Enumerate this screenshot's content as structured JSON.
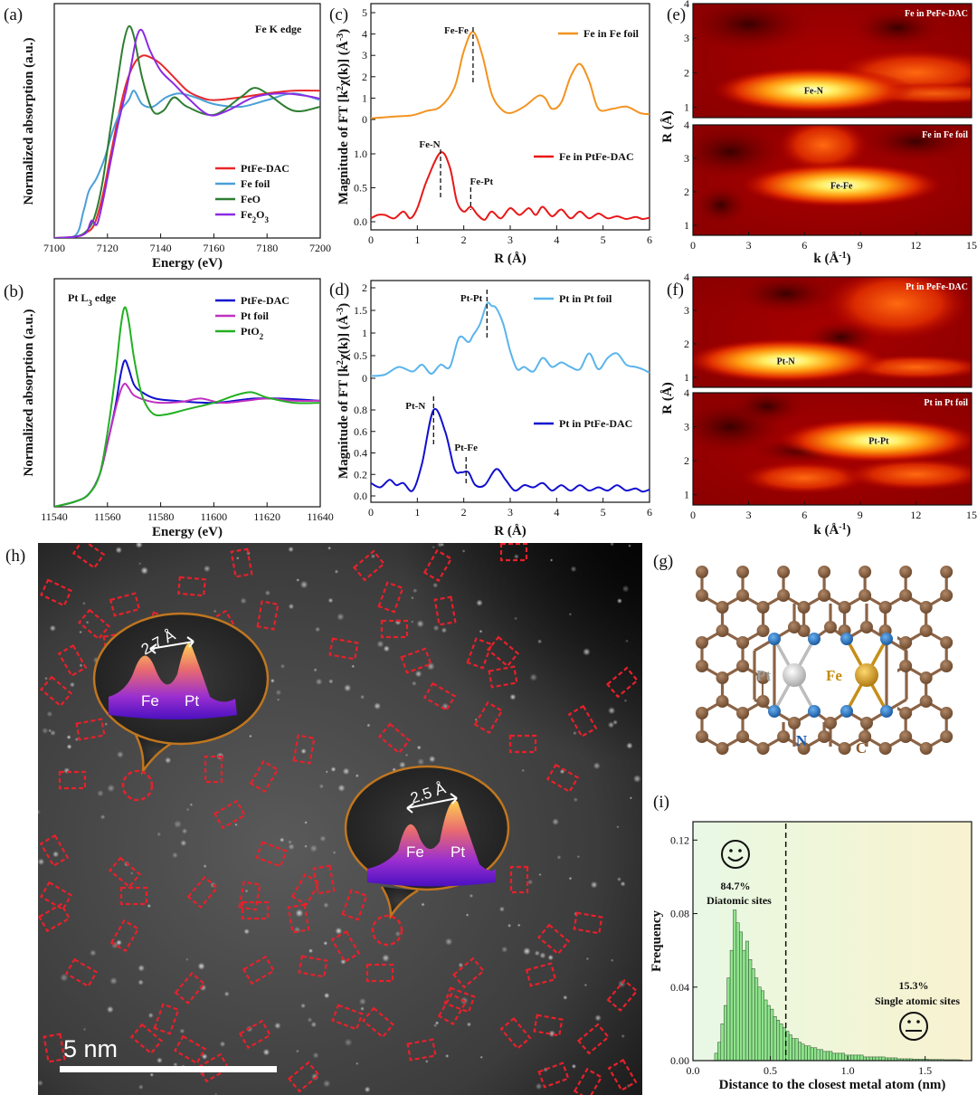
{
  "panels": {
    "a": "(a)",
    "b": "(b)",
    "c": "(c)",
    "d": "(d)",
    "e": "(e)",
    "f": "(f)",
    "g": "(g)",
    "h": "(h)",
    "i": "(i)"
  },
  "colors": {
    "pa_ptfe": "#e8282b",
    "pa_fefoil": "#4a9fd8",
    "pa_feo": "#2e7d32",
    "pa_fe2o3": "#8a2be2",
    "pb_ptfe": "#1010d0",
    "pb_ptfoil": "#c030c0",
    "pb_pto2": "#22b022",
    "pc_foil": "#f39320",
    "pc_dac": "#e81818",
    "pd_foil": "#5ab4ec",
    "pd_dac": "#1010d0",
    "hist_bar": "#8fe38c",
    "box": "#e8202a",
    "bubble": "#c0761f",
    "lattice_c": "#8b6346",
    "lattice_n": "#2a78c8",
    "lattice_pt": "#d8d8d8",
    "lattice_fe": "#d79a1d"
  },
  "chart_data": [
    {
      "id": "a",
      "type": "line",
      "title": "Fe K edge",
      "xlabel": "Energy (eV)",
      "ylabel": "Normalized absorption (a.u.)",
      "xlim": [
        7100,
        7200
      ],
      "xticks": [
        "7100",
        "7120",
        "7140",
        "7160",
        "7180",
        "7200"
      ],
      "series": [
        {
          "name": "PtFe-DAC",
          "color_key": "pa_ptfe",
          "x": [
            7100,
            7108,
            7112,
            7115,
            7118,
            7121,
            7124,
            7127,
            7130,
            7133,
            7136,
            7140,
            7145,
            7150,
            7155,
            7160,
            7170,
            7180,
            7190,
            7200
          ],
          "y": [
            0.0,
            0.01,
            0.04,
            0.1,
            0.3,
            0.6,
            0.9,
            1.15,
            1.3,
            1.36,
            1.35,
            1.3,
            1.2,
            1.1,
            1.05,
            1.03,
            1.05,
            1.08,
            1.1,
            1.1
          ]
        },
        {
          "name": "Fe foil",
          "color_key": "pa_fefoil",
          "x": [
            7100,
            7108,
            7111,
            7113,
            7116,
            7119,
            7122,
            7125,
            7128,
            7130,
            7133,
            7137,
            7142,
            7147,
            7153,
            7160,
            7170,
            7180,
            7190,
            7200
          ],
          "y": [
            0.0,
            0.02,
            0.2,
            0.35,
            0.45,
            0.6,
            0.8,
            0.95,
            1.03,
            1.1,
            1.0,
            0.98,
            1.05,
            1.08,
            1.05,
            1.0,
            0.98,
            1.03,
            1.08,
            1.03
          ]
        },
        {
          "name": "FeO",
          "color_key": "pa_feo",
          "x": [
            7100,
            7108,
            7112,
            7115,
            7118,
            7121,
            7124,
            7126,
            7128,
            7130,
            7133,
            7137,
            7141,
            7145,
            7150,
            7160,
            7170,
            7175,
            7180,
            7190,
            7200
          ],
          "y": [
            0.0,
            0.01,
            0.05,
            0.15,
            0.4,
            0.8,
            1.2,
            1.45,
            1.58,
            1.5,
            1.2,
            0.95,
            0.95,
            1.05,
            0.98,
            0.92,
            1.05,
            1.12,
            1.08,
            0.95,
            0.98
          ]
        },
        {
          "name": "Fe2O3",
          "color_key": "pa_fe2o3",
          "x": [
            7100,
            7108,
            7112,
            7114,
            7116,
            7118,
            7121,
            7124,
            7127,
            7129,
            7131,
            7133,
            7136,
            7140,
            7145,
            7150,
            7158,
            7165,
            7175,
            7185,
            7195,
            7200
          ],
          "y": [
            0.0,
            0.01,
            0.04,
            0.13,
            0.1,
            0.25,
            0.55,
            0.85,
            1.1,
            1.3,
            1.5,
            1.55,
            1.4,
            1.25,
            1.15,
            1.05,
            0.92,
            0.95,
            1.05,
            1.08,
            1.06,
            1.04
          ]
        }
      ]
    },
    {
      "id": "b",
      "type": "line",
      "title": "Pt L3 edge",
      "xlabel": "Energy (eV)",
      "ylabel": "Normalized absorption (a.u.)",
      "xlim": [
        11540,
        11640
      ],
      "xticks": [
        "11540",
        "11560",
        "11580",
        "11600",
        "11620",
        "11640"
      ],
      "series": [
        {
          "name": "PtFe-DAC",
          "color_key": "pb_ptfe",
          "x": [
            11540,
            11548,
            11553,
            11557,
            11560,
            11563,
            11565,
            11566.5,
            11568,
            11570,
            11573,
            11578,
            11585,
            11600,
            11615,
            11625,
            11640
          ],
          "y": [
            0.0,
            0.05,
            0.12,
            0.3,
            0.6,
            0.95,
            1.25,
            1.38,
            1.3,
            1.15,
            1.08,
            1.02,
            1.0,
            0.98,
            1.02,
            1.02,
            1.0
          ]
        },
        {
          "name": "Pt foil",
          "color_key": "pb_ptfoil",
          "x": [
            11540,
            11548,
            11553,
            11557,
            11560,
            11563,
            11565,
            11566.5,
            11568,
            11570,
            11575,
            11580,
            11588,
            11595,
            11603,
            11612,
            11620,
            11630,
            11640
          ],
          "y": [
            0.0,
            0.05,
            0.12,
            0.3,
            0.6,
            0.92,
            1.1,
            1.16,
            1.12,
            1.05,
            1.0,
            0.98,
            0.99,
            1.02,
            0.98,
            1.0,
            1.02,
            1.0,
            1.0
          ]
        },
        {
          "name": "PtO2",
          "color_key": "pb_pto2",
          "x": [
            11540,
            11548,
            11553,
            11557,
            11560,
            11563,
            11565,
            11566.5,
            11568,
            11570,
            11573,
            11577,
            11582,
            11590,
            11600,
            11608,
            11614,
            11620,
            11630,
            11640
          ],
          "y": [
            0.0,
            0.05,
            0.12,
            0.3,
            0.7,
            1.25,
            1.7,
            1.88,
            1.75,
            1.4,
            1.05,
            0.88,
            0.87,
            0.92,
            0.98,
            1.05,
            1.08,
            1.03,
            0.98,
            0.98
          ]
        }
      ]
    },
    {
      "id": "c",
      "type": "line",
      "xlabel": "R (Å)",
      "ylabel": "Magnitude of FT [k²χ(k)] (Å⁻³)",
      "xlim": [
        0,
        6
      ],
      "xticks": [
        "0",
        "1",
        "2",
        "3",
        "4",
        "5",
        "6"
      ],
      "yticks_top": [
        "0",
        "1",
        "2",
        "3",
        "4",
        "5"
      ],
      "yticks_bottom": [
        "0.0",
        "0.5",
        "1.0"
      ],
      "annotations": [
        {
          "text": "Fe-Fe",
          "x": 2.2
        },
        {
          "text": "Fe-N",
          "x": 1.5
        },
        {
          "text": "Fe-Pt",
          "x": 2.15
        }
      ],
      "series": [
        {
          "name": "Fe in Fe foil",
          "color_key": "pc_foil",
          "x": [
            0,
            0.3,
            0.6,
            0.9,
            1.2,
            1.5,
            1.8,
            2.0,
            2.2,
            2.4,
            2.6,
            2.8,
            3.0,
            3.3,
            3.6,
            3.75,
            3.9,
            4.1,
            4.3,
            4.5,
            4.7,
            4.9,
            5.2,
            5.5,
            5.8,
            6.0
          ],
          "y": [
            0.05,
            0.1,
            0.15,
            0.2,
            0.4,
            0.6,
            1.5,
            3.2,
            4.1,
            3.0,
            1.2,
            0.5,
            0.3,
            0.6,
            1.1,
            1.0,
            0.5,
            0.8,
            2.0,
            2.6,
            1.8,
            0.5,
            0.5,
            0.6,
            0.3,
            0.25
          ]
        },
        {
          "name": "Fe in PtFe-DAC",
          "color_key": "pc_dac",
          "x": [
            0,
            0.15,
            0.3,
            0.5,
            0.7,
            0.85,
            1.0,
            1.2,
            1.5,
            1.7,
            1.85,
            2.0,
            2.15,
            2.3,
            2.45,
            2.6,
            2.8,
            3.0,
            3.2,
            3.4,
            3.55,
            3.7,
            3.9,
            4.1,
            4.3,
            4.5,
            4.7,
            4.9,
            5.1,
            5.3,
            5.5,
            5.7,
            5.85,
            6.0
          ],
          "y": [
            0.05,
            0.1,
            0.1,
            0.05,
            0.15,
            0.05,
            0.2,
            0.6,
            1.02,
            0.8,
            0.3,
            0.15,
            0.22,
            0.1,
            0.03,
            0.15,
            0.05,
            0.2,
            0.1,
            0.2,
            0.1,
            0.22,
            0.08,
            0.18,
            0.05,
            0.15,
            0.05,
            0.12,
            0.05,
            0.08,
            0.04,
            0.07,
            0.04,
            0.06
          ]
        }
      ]
    },
    {
      "id": "d",
      "type": "line",
      "xlabel": "R (Å)",
      "ylabel": "Magnitude of FT [k²χ(k)] (Å⁻³)",
      "xlim": [
        0,
        6
      ],
      "xticks": [
        "0",
        "1",
        "2",
        "3",
        "4",
        "5",
        "6"
      ],
      "yticks_top": [
        "0",
        "0.5",
        "1",
        "1.5",
        "2"
      ],
      "yticks_bottom": [
        "0.0",
        "0.2",
        "0.4",
        "0.6",
        "0.8"
      ],
      "annotations": [
        {
          "text": "Pt-Pt",
          "x": 2.5
        },
        {
          "text": "Pt-N",
          "x": 1.35
        },
        {
          "text": "Pt-Fe",
          "x": 2.05
        }
      ],
      "series": [
        {
          "name": "Pt in Pt foil",
          "color_key": "pd_foil",
          "x": [
            0,
            0.3,
            0.6,
            0.9,
            1.1,
            1.3,
            1.5,
            1.7,
            1.9,
            2.1,
            2.2,
            2.35,
            2.5,
            2.6,
            2.7,
            2.85,
            3.0,
            3.15,
            3.3,
            3.5,
            3.7,
            3.9,
            4.1,
            4.3,
            4.5,
            4.7,
            4.9,
            5.1,
            5.3,
            5.5,
            5.7,
            5.85,
            6.0
          ],
          "y": [
            0.05,
            0.08,
            0.25,
            0.15,
            0.3,
            0.1,
            0.3,
            0.25,
            0.9,
            0.8,
            0.95,
            1.2,
            1.65,
            1.6,
            1.55,
            1.2,
            0.6,
            0.2,
            0.25,
            0.15,
            0.45,
            0.25,
            0.35,
            0.25,
            0.2,
            0.55,
            0.2,
            0.45,
            0.55,
            0.3,
            0.25,
            0.2,
            0.12
          ]
        },
        {
          "name": "Pt in PtFe-DAC",
          "color_key": "pd_dac",
          "x": [
            0,
            0.2,
            0.4,
            0.55,
            0.7,
            0.9,
            1.1,
            1.35,
            1.6,
            1.8,
            1.95,
            2.1,
            2.25,
            2.45,
            2.7,
            2.9,
            3.1,
            3.3,
            3.5,
            3.7,
            3.9,
            4.1,
            4.3,
            4.5,
            4.7,
            4.9,
            5.1,
            5.3,
            5.5,
            5.7,
            5.85,
            6.0
          ],
          "y": [
            0.12,
            0.08,
            0.15,
            0.1,
            0.12,
            0.05,
            0.3,
            0.8,
            0.6,
            0.25,
            0.22,
            0.22,
            0.1,
            0.1,
            0.25,
            0.15,
            0.05,
            0.1,
            0.08,
            0.12,
            0.05,
            0.1,
            0.05,
            0.1,
            0.05,
            0.08,
            0.05,
            0.1,
            0.05,
            0.07,
            0.04,
            0.06
          ]
        }
      ]
    },
    {
      "id": "e",
      "type": "heatmap",
      "xlabel": "k (Å⁻¹)",
      "ylabel": "R (Å)",
      "xticks": [
        "0",
        "3",
        "6",
        "9",
        "12",
        "15"
      ],
      "yticks": [
        "1",
        "2",
        "3",
        "4"
      ],
      "subplots": [
        {
          "title": "Fe in PeFe-DAC",
          "label": "Fe-N",
          "peak_k": 6.5,
          "peak_r": 1.5
        },
        {
          "title": "Fe in Fe foil",
          "label": "Fe-Fe",
          "peak_k": 8,
          "peak_r": 2.2
        }
      ]
    },
    {
      "id": "f",
      "type": "heatmap",
      "xlabel": "k (Å⁻¹)",
      "ylabel": "R (Å)",
      "xticks": [
        "0",
        "3",
        "6",
        "9",
        "12",
        "15"
      ],
      "yticks": [
        "1",
        "2",
        "3",
        "4"
      ],
      "subplots": [
        {
          "title": "Pt in PeFe-DAC",
          "label": "Pt-N",
          "peak_k": 5,
          "peak_r": 1.5
        },
        {
          "title": "Pt in Pt foil",
          "label": "Pt-Pt",
          "peak_k": 10,
          "peak_r": 2.6
        }
      ]
    },
    {
      "id": "i",
      "type": "bar",
      "xlabel": "Distance to the closest metal atom (nm)",
      "ylabel": "Frequency",
      "xlim": [
        0,
        1.8
      ],
      "ylim": [
        0,
        0.13
      ],
      "xticks": [
        "0.0",
        "0.5",
        "1.0",
        "1.5"
      ],
      "yticks": [
        "0.00",
        "0.04",
        "0.08",
        "0.12"
      ],
      "bin_width": 0.02,
      "bins_start": 0.14,
      "values": [
        0.004,
        0.01,
        0.02,
        0.03,
        0.045,
        0.06,
        0.082,
        0.075,
        0.07,
        0.06,
        0.065,
        0.055,
        0.05,
        0.045,
        0.04,
        0.038,
        0.033,
        0.03,
        0.028,
        0.024,
        0.022,
        0.02,
        0.018,
        0.016,
        0.014,
        0.012,
        0.012,
        0.01,
        0.009,
        0.008,
        0.008,
        0.007,
        0.007,
        0.006,
        0.006,
        0.005,
        0.005,
        0.005,
        0.004,
        0.004,
        0.004,
        0.004,
        0.003,
        0.003,
        0.003,
        0.003,
        0.003,
        0.003,
        0.002,
        0.002,
        0.002,
        0.002,
        0.002,
        0.002,
        0.002,
        0.0015,
        0.0015,
        0.0015,
        0.0015,
        0.001,
        0.001,
        0.001,
        0.001,
        0.001,
        0.0008,
        0.0008,
        0.0008,
        0.0008,
        0.0008,
        0.0006,
        0.0006,
        0.0006,
        0.0006,
        0.0006,
        0.0005,
        0.0005,
        0.0005,
        0.0005,
        0.0005,
        0.0004
      ],
      "threshold": 0.6,
      "annotations": {
        "diatomic_pct": "84.7%",
        "diatomic_label": "Diatomic sites",
        "single_pct": "15.3%",
        "single_label": "Single atomic sites"
      }
    }
  ],
  "lattice": {
    "pt_label": "Pt",
    "fe_label": "Fe",
    "n_label": "N",
    "c_label": "C"
  },
  "haadf": {
    "bubble1": {
      "dist": "2.7 Å",
      "left": "Fe",
      "right": "Pt"
    },
    "bubble2": {
      "dist": "2.5 Å",
      "left": "Fe",
      "right": "Pt"
    },
    "scale_label": "5 nm"
  }
}
